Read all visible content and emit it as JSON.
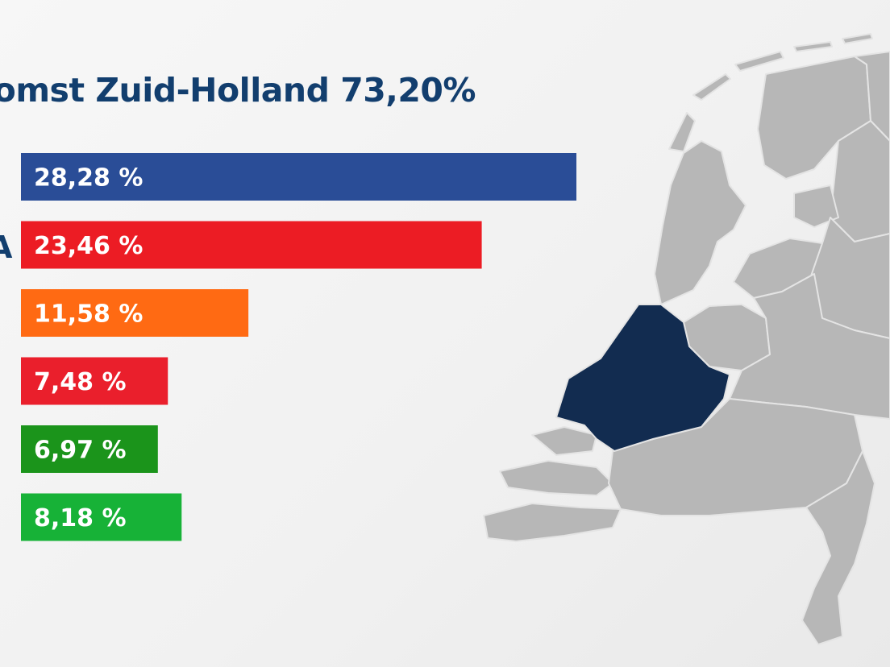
{
  "title": "omst Zuid-Holland 73,20%",
  "party_fragment": "A",
  "map_icon": "netherlands-province-map",
  "highlight_region": "Zuid-Holland",
  "chart_data": {
    "type": "bar",
    "orientation": "horizontal",
    "title": "omst Zuid-Holland 73,20%",
    "values": [
      28.28,
      23.46,
      11.58,
      7.48,
      6.97,
      8.18
    ],
    "labels": [
      "28,28 %",
      "23,46 %",
      "11,58 %",
      "7,48 %",
      "6,97 %",
      "8,18 %"
    ],
    "colors": [
      "#2a4d97",
      "#ec1c24",
      "#ff6a13",
      "#ea1f2c",
      "#1b941b",
      "#17b237"
    ],
    "xlim": [
      0,
      28.28
    ],
    "grid": false,
    "legend": "none"
  },
  "colors": {
    "title": "#123e6e",
    "map_land": "#b7b7b7",
    "map_border": "#e4e4e4",
    "map_highlight": "#122c50"
  }
}
